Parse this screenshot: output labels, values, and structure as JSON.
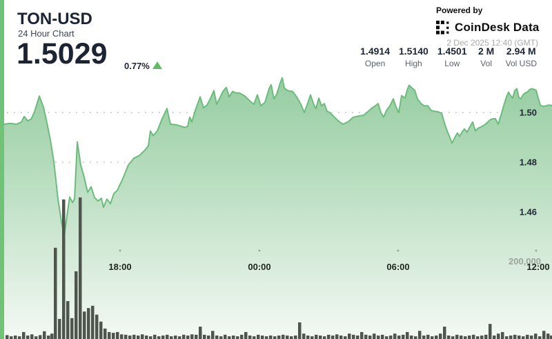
{
  "header": {
    "symbol": "TON-USD",
    "subtitle": "24 Hour Chart",
    "price": "1.5029",
    "change_percent": "0.77%",
    "change_direction": "up",
    "powered_by": "Powered by",
    "brand": "CoinDesk Data",
    "timestamp": "2 Dec 2025 12:40 (GMT)",
    "stats": [
      {
        "value": "1.4914",
        "label": "Open"
      },
      {
        "value": "1.5140",
        "label": "High"
      },
      {
        "value": "1.4501",
        "label": "Low"
      },
      {
        "value": "2 M",
        "label": "Vol"
      },
      {
        "value": "2.94 M",
        "label": "Vol USD"
      }
    ]
  },
  "colors": {
    "accent_green": "#70c276",
    "line_green": "#6cbb7d",
    "fill_top": "#8fca9b",
    "fill_bottom": "#f4f9f4",
    "volume_bar": "#4e554c",
    "grid_dot": "#b4bab4",
    "navy_text": "#1c2434",
    "gray_text": "#a6a9ad",
    "up_triangle": "#5fbb66"
  },
  "chart_data": {
    "type": "area",
    "title": "TON-USD 24 Hour Chart",
    "open": 1.4914,
    "high": 1.514,
    "low": 1.4501,
    "last": 1.5029,
    "volume": "2 M",
    "volume_usd": "2.94 M",
    "grid": "dotted-horizontal",
    "y_ticks": [
      {
        "label": "1.50",
        "price": 1.5
      },
      {
        "label": "1.48",
        "price": 1.48
      },
      {
        "label": "1.46",
        "price": 1.46
      }
    ],
    "grid_price_levels": [
      1.5,
      1.48,
      1.46,
      1.44
    ],
    "x_ticks": [
      {
        "label": "18:00",
        "x": 174
      },
      {
        "label": "00:00",
        "x": 376
      },
      {
        "label": "06:00",
        "x": 577
      },
      {
        "label": "12:00",
        "x": 780
      }
    ],
    "volume_axis": {
      "label": "200,000",
      "value": 200000
    },
    "series_note": "price samples across 24h window; x is horizontal sample position",
    "series": [
      [
        6,
        1.4953
      ],
      [
        14,
        1.4956
      ],
      [
        24,
        1.4953
      ],
      [
        31,
        1.4962
      ],
      [
        35,
        1.4984
      ],
      [
        40,
        1.4967
      ],
      [
        45,
        1.4973
      ],
      [
        50,
        1.5003
      ],
      [
        57,
        1.5066
      ],
      [
        63,
        1.5022
      ],
      [
        68,
        1.4959
      ],
      [
        73,
        1.489
      ],
      [
        78,
        1.4803
      ],
      [
        84,
        1.4652
      ],
      [
        89,
        1.4562
      ],
      [
        93,
        1.4501
      ],
      [
        97,
        1.4584
      ],
      [
        101,
        1.466
      ],
      [
        105,
        1.4638
      ],
      [
        108,
        1.4652
      ],
      [
        112,
        1.4882
      ],
      [
        117,
        1.4789
      ],
      [
        122,
        1.474
      ],
      [
        127,
        1.4679
      ],
      [
        132,
        1.4701
      ],
      [
        137,
        1.4658
      ],
      [
        142,
        1.4644
      ],
      [
        147,
        1.4655
      ],
      [
        150,
        1.4619
      ],
      [
        155,
        1.4652
      ],
      [
        160,
        1.4633
      ],
      [
        165,
        1.4674
      ],
      [
        170,
        1.4687
      ],
      [
        178,
        1.4734
      ],
      [
        186,
        1.4789
      ],
      [
        194,
        1.4816
      ],
      [
        202,
        1.4827
      ],
      [
        210,
        1.4849
      ],
      [
        215,
        1.4866
      ],
      [
        218,
        1.4926
      ],
      [
        222,
        1.4907
      ],
      [
        228,
        1.4926
      ],
      [
        235,
        1.4975
      ],
      [
        242,
        1.5016
      ],
      [
        247,
        1.4953
      ],
      [
        255,
        1.4951
      ],
      [
        262,
        1.4945
      ],
      [
        268,
        1.494
      ],
      [
        272,
        1.4945
      ],
      [
        275,
        1.4981
      ],
      [
        278,
        1.4962
      ],
      [
        283,
        1.5008
      ],
      [
        290,
        1.5063
      ],
      [
        295,
        1.5019
      ],
      [
        300,
        1.503
      ],
      [
        306,
        1.5063
      ],
      [
        310,
        1.5088
      ],
      [
        314,
        1.5033
      ],
      [
        318,
        1.5055
      ],
      [
        323,
        1.5085
      ],
      [
        328,
        1.5101
      ],
      [
        332,
        1.5063
      ],
      [
        337,
        1.5085
      ],
      [
        342,
        1.5079
      ],
      [
        347,
        1.5079
      ],
      [
        355,
        1.5066
      ],
      [
        362,
        1.5047
      ],
      [
        368,
        1.5033
      ],
      [
        373,
        1.5071
      ],
      [
        378,
        1.5027
      ],
      [
        384,
        1.5041
      ],
      [
        390,
        1.5096
      ],
      [
        393,
        1.5112
      ],
      [
        397,
        1.5055
      ],
      [
        401,
        1.5074
      ],
      [
        406,
        1.5118
      ],
      [
        409,
        1.514
      ],
      [
        412,
        1.5099
      ],
      [
        417,
        1.5088
      ],
      [
        424,
        1.5085
      ],
      [
        430,
        1.5063
      ],
      [
        436,
        1.5033
      ],
      [
        441,
        1.5
      ],
      [
        445,
        1.503
      ],
      [
        450,
        1.5071
      ],
      [
        455,
        1.503
      ],
      [
        458,
        1.5016
      ],
      [
        462,
        1.5058
      ],
      [
        466,
        1.5027
      ],
      [
        470,
        1.5036
      ],
      [
        474,
        1.5005
      ],
      [
        478,
        1.5
      ],
      [
        483,
        1.4986
      ],
      [
        490,
        1.4967
      ],
      [
        497,
        1.4953
      ],
      [
        505,
        1.4964
      ],
      [
        512,
        1.4981
      ],
      [
        520,
        1.4986
      ],
      [
        527,
        1.4989
      ],
      [
        533,
        1.5003
      ],
      [
        538,
        1.5016
      ],
      [
        543,
        1.5025
      ],
      [
        548,
        1.5036
      ],
      [
        552,
        1.5
      ],
      [
        556,
        1.4981
      ],
      [
        560,
        1.5008
      ],
      [
        565,
        1.5027
      ],
      [
        570,
        1.5055
      ],
      [
        574,
        1.5022
      ],
      [
        578,
        1.5
      ],
      [
        582,
        1.5068
      ],
      [
        587,
        1.5058
      ],
      [
        590,
        1.509
      ],
      [
        593,
        1.511
      ],
      [
        597,
        1.5099
      ],
      [
        601,
        1.509
      ],
      [
        605,
        1.5055
      ],
      [
        610,
        1.5036
      ],
      [
        615,
        1.5027
      ],
      [
        620,
        1.5027
      ],
      [
        625,
        1.5008
      ],
      [
        630,
        1.5005
      ],
      [
        635,
        1.5003
      ],
      [
        640,
        1.4997
      ],
      [
        644,
        1.4959
      ],
      [
        648,
        1.4926
      ],
      [
        652,
        1.4899
      ],
      [
        655,
        1.4877
      ],
      [
        659,
        1.4899
      ],
      [
        663,
        1.4918
      ],
      [
        666,
        1.4904
      ],
      [
        670,
        1.4923
      ],
      [
        673,
        1.4934
      ],
      [
        677,
        1.4921
      ],
      [
        681,
        1.4942
      ],
      [
        685,
        1.4962
      ],
      [
        689,
        1.4926
      ],
      [
        693,
        1.4937
      ],
      [
        697,
        1.4942
      ],
      [
        701,
        1.4948
      ],
      [
        706,
        1.4959
      ],
      [
        710,
        1.497
      ],
      [
        714,
        1.4975
      ],
      [
        718,
        1.4975
      ],
      [
        722,
        1.4953
      ],
      [
        726,
        1.4989
      ],
      [
        730,
        1.5027
      ],
      [
        734,
        1.5063
      ],
      [
        737,
        1.5082
      ],
      [
        740,
        1.5068
      ],
      [
        743,
        1.5058
      ],
      [
        746,
        1.5088
      ],
      [
        749,
        1.5096
      ],
      [
        752,
        1.506
      ],
      [
        755,
        1.5055
      ],
      [
        758,
        1.5071
      ],
      [
        761,
        1.5079
      ],
      [
        764,
        1.5082
      ],
      [
        768,
        1.5093
      ],
      [
        771,
        1.5096
      ],
      [
        774,
        1.5093
      ],
      [
        777,
        1.509
      ],
      [
        780,
        1.5058
      ],
      [
        783,
        1.503
      ],
      [
        787,
        1.5025
      ],
      [
        791,
        1.5027
      ],
      [
        795,
        1.503
      ],
      [
        800,
        1.5029
      ]
    ],
    "volume_bars": [
      [
        8,
        10000
      ],
      [
        14,
        7000
      ],
      [
        20,
        9000
      ],
      [
        26,
        7000
      ],
      [
        32,
        18000
      ],
      [
        38,
        9000
      ],
      [
        44,
        12000
      ],
      [
        50,
        7000
      ],
      [
        56,
        10000
      ],
      [
        62,
        20000
      ],
      [
        68,
        9000
      ],
      [
        73,
        14000
      ],
      [
        78,
        236000
      ],
      [
        84,
        52000
      ],
      [
        90,
        361000
      ],
      [
        96,
        98000
      ],
      [
        102,
        54000
      ],
      [
        108,
        175000
      ],
      [
        114,
        366000
      ],
      [
        120,
        71000
      ],
      [
        126,
        80000
      ],
      [
        132,
        86000
      ],
      [
        138,
        63000
      ],
      [
        144,
        45000
      ],
      [
        150,
        27000
      ],
      [
        156,
        18000
      ],
      [
        162,
        16000
      ],
      [
        168,
        18000
      ],
      [
        174,
        12000
      ],
      [
        180,
        11000
      ],
      [
        186,
        9000
      ],
      [
        192,
        11000
      ],
      [
        198,
        9000
      ],
      [
        204,
        12000
      ],
      [
        210,
        9000
      ],
      [
        216,
        7000
      ],
      [
        222,
        11000
      ],
      [
        228,
        7000
      ],
      [
        234,
        9000
      ],
      [
        240,
        11000
      ],
      [
        246,
        7000
      ],
      [
        252,
        9000
      ],
      [
        258,
        7000
      ],
      [
        264,
        11000
      ],
      [
        270,
        9000
      ],
      [
        276,
        12000
      ],
      [
        282,
        11000
      ],
      [
        288,
        32000
      ],
      [
        294,
        11000
      ],
      [
        300,
        9000
      ],
      [
        306,
        21000
      ],
      [
        312,
        9000
      ],
      [
        318,
        7000
      ],
      [
        324,
        11000
      ],
      [
        330,
        7000
      ],
      [
        336,
        9000
      ],
      [
        342,
        7000
      ],
      [
        348,
        11000
      ],
      [
        354,
        18000
      ],
      [
        360,
        9000
      ],
      [
        366,
        7000
      ],
      [
        372,
        11000
      ],
      [
        378,
        9000
      ],
      [
        384,
        7000
      ],
      [
        390,
        9000
      ],
      [
        396,
        7000
      ],
      [
        402,
        9000
      ],
      [
        408,
        11000
      ],
      [
        414,
        9000
      ],
      [
        420,
        7000
      ],
      [
        426,
        9000
      ],
      [
        432,
        43000
      ],
      [
        438,
        14000
      ],
      [
        444,
        9000
      ],
      [
        450,
        7000
      ],
      [
        456,
        11000
      ],
      [
        462,
        9000
      ],
      [
        468,
        7000
      ],
      [
        474,
        11000
      ],
      [
        480,
        9000
      ],
      [
        486,
        12000
      ],
      [
        492,
        9000
      ],
      [
        498,
        7000
      ],
      [
        504,
        14000
      ],
      [
        510,
        11000
      ],
      [
        516,
        9000
      ],
      [
        522,
        18000
      ],
      [
        528,
        11000
      ],
      [
        534,
        9000
      ],
      [
        540,
        14000
      ],
      [
        546,
        9000
      ],
      [
        552,
        11000
      ],
      [
        558,
        7000
      ],
      [
        564,
        9000
      ],
      [
        570,
        14000
      ],
      [
        576,
        9000
      ],
      [
        582,
        11000
      ],
      [
        588,
        18000
      ],
      [
        594,
        9000
      ],
      [
        600,
        7000
      ],
      [
        606,
        21000
      ],
      [
        612,
        9000
      ],
      [
        618,
        11000
      ],
      [
        624,
        7000
      ],
      [
        630,
        9000
      ],
      [
        636,
        14000
      ],
      [
        642,
        32000
      ],
      [
        648,
        9000
      ],
      [
        654,
        7000
      ],
      [
        660,
        11000
      ],
      [
        666,
        9000
      ],
      [
        672,
        7000
      ],
      [
        678,
        9000
      ],
      [
        684,
        11000
      ],
      [
        690,
        7000
      ],
      [
        696,
        9000
      ],
      [
        702,
        11000
      ],
      [
        708,
        39000
      ],
      [
        714,
        9000
      ],
      [
        720,
        14000
      ],
      [
        726,
        18000
      ],
      [
        732,
        7000
      ],
      [
        738,
        9000
      ],
      [
        744,
        11000
      ],
      [
        750,
        9000
      ],
      [
        756,
        7000
      ],
      [
        762,
        11000
      ],
      [
        768,
        9000
      ],
      [
        774,
        14000
      ],
      [
        780,
        7000
      ],
      [
        786,
        21000
      ],
      [
        792,
        14000
      ],
      [
        797,
        9000
      ]
    ]
  }
}
